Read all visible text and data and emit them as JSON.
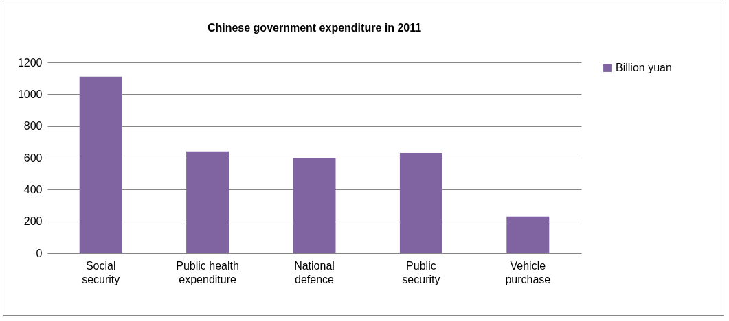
{
  "chart_data": {
    "type": "bar",
    "title": "Chinese government expenditure in 2011",
    "categories": [
      "Social security",
      "Public health expenditure",
      "National defence",
      "Public security",
      "Vehicle purchase"
    ],
    "series": [
      {
        "name": "Billion yuan",
        "color": "#8064a2",
        "values": [
          1110,
          640,
          600,
          630,
          230
        ]
      }
    ],
    "ylim": [
      0,
      1200
    ],
    "yticks": [
      0,
      200,
      400,
      600,
      800,
      1000,
      1200
    ],
    "grid": "y",
    "legend": "right"
  }
}
